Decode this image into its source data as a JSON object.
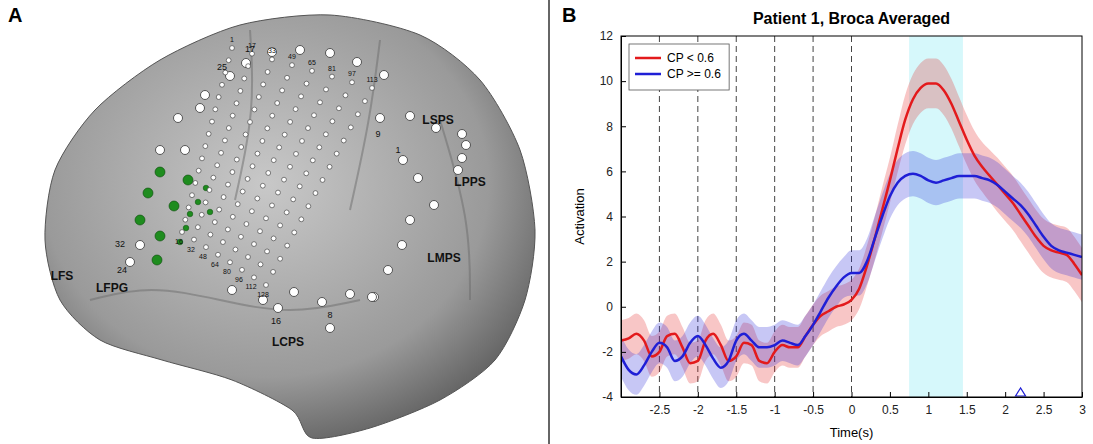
{
  "panel_labels": [
    "A",
    "B"
  ],
  "brain": {
    "region_labels": [
      "LSPS",
      "LPPS",
      "LMPS",
      "LCPS",
      "LFPG",
      "LFS"
    ],
    "grid_top_labels": [
      "1",
      "17",
      "33",
      "49",
      "65",
      "81",
      "97",
      "113"
    ],
    "grid_bottom_labels": [
      "16",
      "32",
      "48",
      "64",
      "80",
      "96",
      "112",
      "128"
    ],
    "strip_labels": [
      "25",
      "17",
      "9",
      "1",
      "32",
      "24",
      "16",
      "8"
    ]
  },
  "chart_data": {
    "type": "line",
    "title": "Patient 1, Broca Averaged",
    "x_label": "Time(s)",
    "y_label": "Activation",
    "xlim": [
      -3,
      3
    ],
    "ylim": [
      -4,
      12
    ],
    "xticks": [
      -2.5,
      -2,
      -1.5,
      -1,
      -0.5,
      0,
      0.5,
      1,
      1.5,
      2,
      2.5,
      3
    ],
    "yticks": [
      -4,
      -2,
      0,
      2,
      4,
      6,
      8,
      10,
      12
    ],
    "legend": "upper left",
    "event_lines": [
      -2.5,
      -2,
      -1.5,
      -1,
      -0.5,
      0
    ],
    "highlight_window": [
      0.75,
      1.45
    ],
    "event_marker": 2.2,
    "x": [
      -3,
      -2.9,
      -2.8,
      -2.7,
      -2.6,
      -2.5,
      -2.4,
      -2.3,
      -2.2,
      -2.1,
      -2,
      -1.9,
      -1.8,
      -1.7,
      -1.6,
      -1.5,
      -1.4,
      -1.3,
      -1.2,
      -1.1,
      -1,
      -0.9,
      -0.8,
      -0.7,
      -0.6,
      -0.5,
      -0.4,
      -0.3,
      -0.2,
      -0.1,
      0,
      0.1,
      0.2,
      0.3,
      0.4,
      0.5,
      0.6,
      0.7,
      0.8,
      0.9,
      1,
      1.1,
      1.2,
      1.3,
      1.4,
      1.5,
      1.6,
      1.7,
      1.8,
      1.9,
      2,
      2.1,
      2.2,
      2.3,
      2.4,
      2.5,
      2.6,
      2.7,
      2.8,
      2.9,
      3
    ],
    "series": [
      {
        "name": "CP < 0.6",
        "color": "#e31a1c",
        "values": [
          -1.5,
          -1.4,
          -1.2,
          -1.5,
          -2.2,
          -2.0,
          -1.3,
          -1.2,
          -1.8,
          -2.5,
          -2.4,
          -1.5,
          -1.2,
          -1.7,
          -2.4,
          -2.2,
          -1.6,
          -1.7,
          -2.4,
          -2.5,
          -2.0,
          -1.7,
          -1.8,
          -1.8,
          -1.3,
          -0.8,
          -0.4,
          -0.2,
          0.0,
          0.1,
          0.3,
          0.8,
          1.8,
          3.0,
          4.3,
          5.6,
          7.0,
          8.3,
          9.2,
          9.7,
          9.9,
          9.9,
          9.6,
          9.0,
          8.2,
          7.4,
          6.7,
          6.2,
          5.8,
          5.4,
          5.0,
          4.6,
          4.1,
          3.6,
          3.1,
          2.7,
          2.5,
          2.4,
          2.3,
          1.9,
          1.4
        ],
        "error": [
          0.9,
          0.9,
          0.9,
          0.9,
          0.9,
          0.9,
          0.9,
          0.9,
          0.9,
          0.9,
          0.9,
          0.9,
          0.9,
          0.9,
          0.9,
          0.9,
          0.9,
          0.9,
          0.9,
          0.9,
          0.9,
          0.9,
          0.9,
          0.9,
          0.9,
          0.9,
          0.9,
          0.9,
          0.9,
          0.9,
          0.9,
          0.9,
          0.9,
          0.95,
          1.0,
          1.0,
          1.05,
          1.1,
          1.1,
          1.1,
          1.1,
          1.1,
          1.1,
          1.1,
          1.1,
          1.1,
          1.1,
          1.1,
          1.15,
          1.2,
          1.2,
          1.2,
          1.2,
          1.2,
          1.2,
          1.2,
          1.2,
          1.2,
          1.2,
          1.2,
          1.2
        ]
      },
      {
        "name": "CP >= 0.6",
        "color": "#1f1fd6",
        "values": [
          -2.2,
          -2.8,
          -3.0,
          -2.6,
          -2.0,
          -1.6,
          -1.8,
          -2.4,
          -2.2,
          -1.6,
          -1.3,
          -1.7,
          -2.3,
          -2.7,
          -2.4,
          -1.5,
          -1.2,
          -1.5,
          -1.8,
          -1.8,
          -1.7,
          -1.5,
          -1.6,
          -1.7,
          -1.3,
          -0.8,
          -0.2,
          0.4,
          0.9,
          1.3,
          1.5,
          1.5,
          2.0,
          3.0,
          4.0,
          4.9,
          5.5,
          5.8,
          5.9,
          5.8,
          5.6,
          5.5,
          5.6,
          5.7,
          5.8,
          5.8,
          5.8,
          5.7,
          5.6,
          5.4,
          5.1,
          4.8,
          4.5,
          4.1,
          3.6,
          3.1,
          2.7,
          2.5,
          2.4,
          2.3,
          2.2
        ],
        "error": [
          0.9,
          0.9,
          0.9,
          0.9,
          0.9,
          0.9,
          0.9,
          0.9,
          0.9,
          0.9,
          0.9,
          0.9,
          0.9,
          0.9,
          0.9,
          0.9,
          0.9,
          0.9,
          0.9,
          0.9,
          0.9,
          0.9,
          0.9,
          0.9,
          0.9,
          0.9,
          0.9,
          0.9,
          0.9,
          0.9,
          1.0,
          1.0,
          1.0,
          1.0,
          1.0,
          1.0,
          1.0,
          1.0,
          1.0,
          1.0,
          1.0,
          1.0,
          1.0,
          1.0,
          1.0,
          1.0,
          1.0,
          1.0,
          1.0,
          1.0,
          1.0,
          1.0,
          1.0,
          1.0,
          1.0,
          1.0,
          1.0,
          1.0,
          1.0,
          1.0,
          1.0
        ]
      }
    ]
  }
}
